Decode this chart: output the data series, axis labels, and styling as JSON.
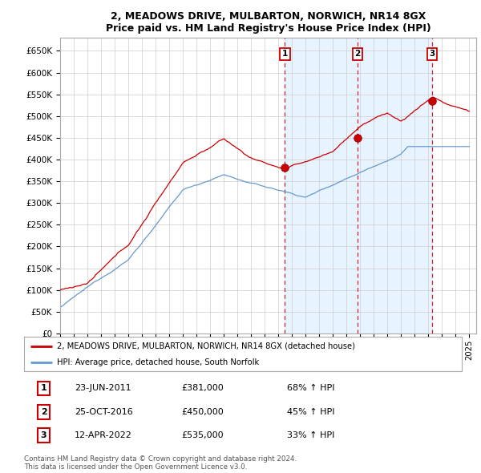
{
  "title": "2, MEADOWS DRIVE, MULBARTON, NORWICH, NR14 8GX",
  "subtitle": "Price paid vs. HM Land Registry's House Price Index (HPI)",
  "ylim": [
    0,
    680000
  ],
  "yticks": [
    0,
    50000,
    100000,
    150000,
    200000,
    250000,
    300000,
    350000,
    400000,
    450000,
    500000,
    550000,
    600000,
    650000
  ],
  "xlim_start": 1995.0,
  "xlim_end": 2025.5,
  "sale_dates": [
    2011.48,
    2016.81,
    2022.28
  ],
  "sale_prices": [
    381000,
    450000,
    535000
  ],
  "sale_labels": [
    "1",
    "2",
    "3"
  ],
  "legend_entries": [
    "2, MEADOWS DRIVE, MULBARTON, NORWICH, NR14 8GX (detached house)",
    "HPI: Average price, detached house, South Norfolk"
  ],
  "table_rows": [
    [
      "1",
      "23-JUN-2011",
      "£381,000",
      "68% ↑ HPI"
    ],
    [
      "2",
      "25-OCT-2016",
      "£450,000",
      "45% ↑ HPI"
    ],
    [
      "3",
      "12-APR-2022",
      "£535,000",
      "33% ↑ HPI"
    ]
  ],
  "footnote": "Contains HM Land Registry data © Crown copyright and database right 2024.\nThis data is licensed under the Open Government Licence v3.0.",
  "hpi_color": "#6699cc",
  "price_color": "#cc0000",
  "vline_color": "#cc0000",
  "shade_color": "#ddeeff",
  "background_color": "#ffffff",
  "plot_bg_color": "#ffffff"
}
